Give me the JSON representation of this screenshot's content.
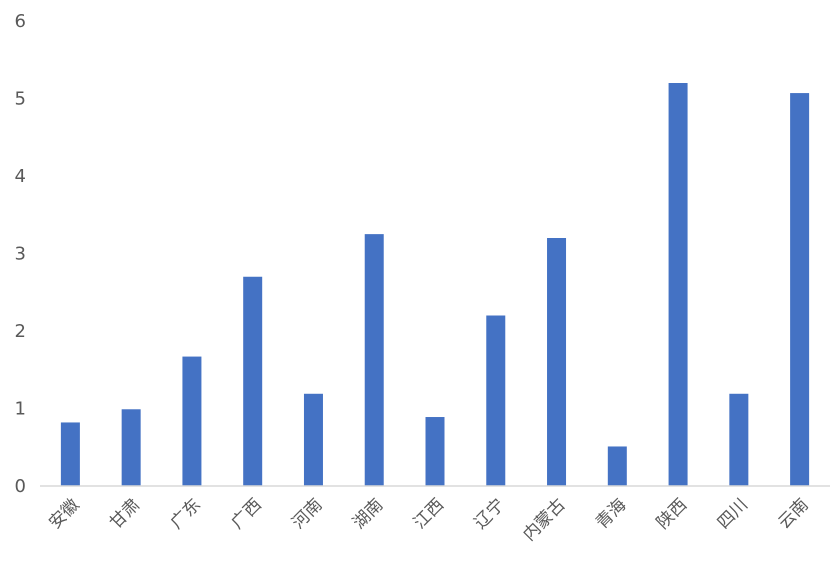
{
  "chart_data": {
    "type": "bar",
    "categories": [
      "安徽",
      "甘肃",
      "广东",
      "广西",
      "河南",
      "湖南",
      "江西",
      "辽宁",
      "内蒙古",
      "青海",
      "陕西",
      "四川",
      "云南"
    ],
    "values": [
      0.82,
      0.99,
      1.67,
      2.7,
      1.19,
      3.25,
      0.89,
      2.2,
      3.2,
      0.51,
      5.2,
      1.19,
      5.07
    ],
    "y_ticks": [
      "0",
      "1",
      "2",
      "3",
      "4",
      "5",
      "6"
    ],
    "ylim": [
      0,
      6
    ],
    "grid": false,
    "legend": "none",
    "bar_color": "#4472C4",
    "axis_color": "#D9D9D9"
  }
}
